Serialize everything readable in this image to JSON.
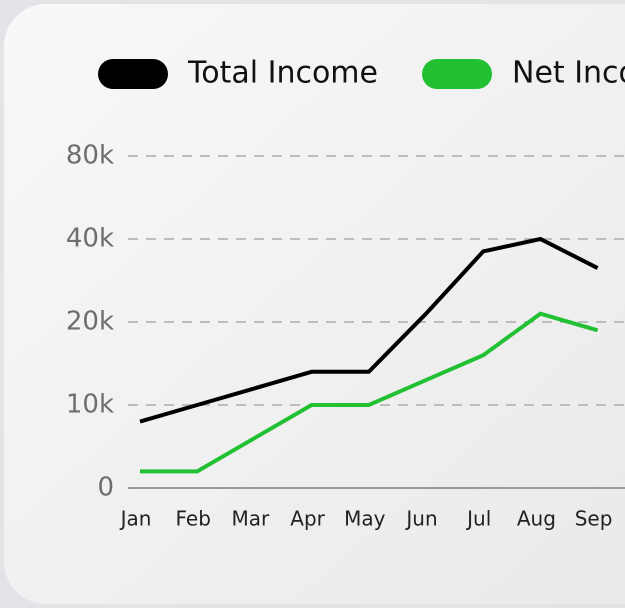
{
  "chart_data": {
    "type": "line",
    "categories": [
      "Jan",
      "Feb",
      "Mar",
      "Apr",
      "May",
      "Jun",
      "Jul",
      "Aug",
      "Sep"
    ],
    "series": [
      {
        "name": "Total Income",
        "color": "#000000",
        "values": [
          8000,
          10000,
          12000,
          14000,
          14000,
          22000,
          37000,
          40000,
          33000
        ]
      },
      {
        "name": "Net Income",
        "color": "#22c033",
        "values": [
          2000,
          2000,
          6000,
          10000,
          10000,
          13000,
          16000,
          22000,
          19000
        ]
      }
    ],
    "ylim": [
      0,
      80000
    ],
    "yticks": [
      0,
      {
        "value": 10000,
        "label": "10k"
      },
      {
        "value": 20000,
        "label": "20k"
      },
      {
        "value": 40000,
        "label": "40k"
      },
      {
        "value": 80000,
        "label": "80k"
      }
    ],
    "grid": true
  }
}
